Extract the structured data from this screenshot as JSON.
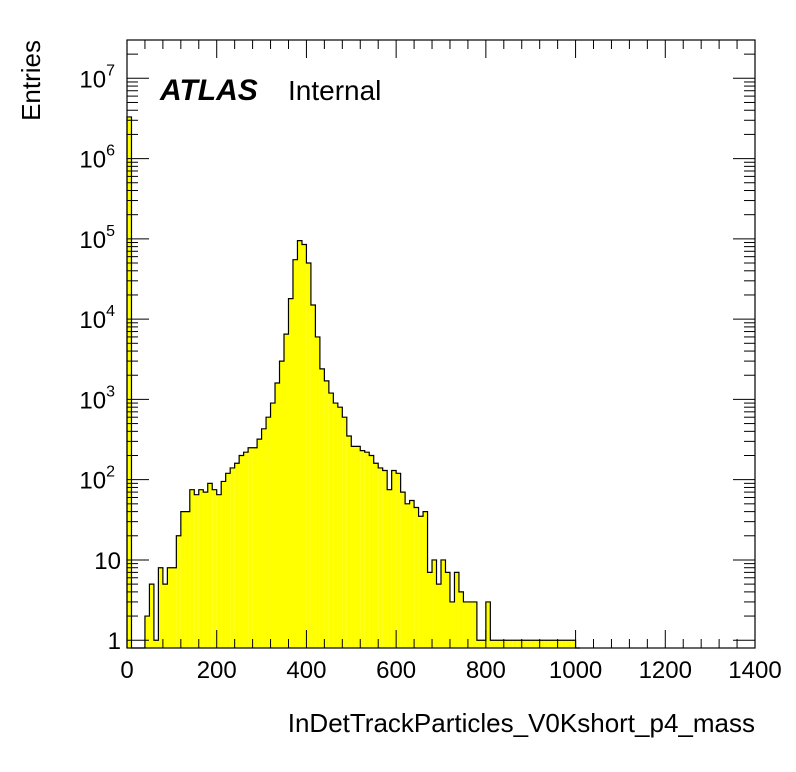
{
  "chart_data": {
    "type": "bar",
    "title": "",
    "xlabel": "InDetTrackParticles_V0Kshort_p4_mass",
    "ylabel": "Entries",
    "xlim": [
      0,
      1400
    ],
    "ylim": [
      0.8,
      30000000
    ],
    "y_scale": "log",
    "grid": false,
    "bar_color": "#ffff00",
    "bin_width": 10,
    "x_ticks": [
      0,
      200,
      400,
      600,
      800,
      1000,
      1200,
      1400
    ],
    "y_ticks": [
      {
        "value": 1,
        "label": "1"
      },
      {
        "value": 10,
        "label": "10"
      },
      {
        "value": 100,
        "label": "10",
        "sup": "2"
      },
      {
        "value": 1000,
        "label": "10",
        "sup": "3"
      },
      {
        "value": 10000,
        "label": "10",
        "sup": "4"
      },
      {
        "value": 100000,
        "label": "10",
        "sup": "5"
      },
      {
        "value": 1000000,
        "label": "10",
        "sup": "6"
      },
      {
        "value": 10000000,
        "label": "10",
        "sup": "7"
      }
    ],
    "bins_x": [
      0,
      10,
      20,
      30,
      40,
      50,
      60,
      70,
      80,
      90,
      100,
      110,
      120,
      130,
      140,
      150,
      160,
      170,
      180,
      190,
      200,
      210,
      220,
      230,
      240,
      250,
      260,
      270,
      280,
      290,
      300,
      310,
      320,
      330,
      340,
      350,
      360,
      370,
      380,
      390,
      400,
      410,
      420,
      430,
      440,
      450,
      460,
      470,
      480,
      490,
      500,
      510,
      520,
      530,
      540,
      550,
      560,
      570,
      580,
      590,
      600,
      610,
      620,
      630,
      640,
      650,
      660,
      670,
      680,
      690,
      700,
      710,
      720,
      730,
      740,
      750,
      760,
      770,
      780,
      790,
      800,
      810,
      820,
      830,
      840,
      850,
      860,
      870,
      880,
      890,
      900,
      910,
      920,
      930,
      940,
      950,
      960,
      970,
      980,
      990,
      1000
    ],
    "values": [
      3300000,
      0,
      0,
      0,
      2,
      5,
      1,
      8,
      5,
      8,
      8,
      20,
      40,
      40,
      75,
      65,
      75,
      70,
      90,
      75,
      65,
      95,
      120,
      140,
      160,
      200,
      220,
      250,
      250,
      320,
      430,
      600,
      900,
      1600,
      3000,
      6500,
      18000,
      55000,
      95000,
      85000,
      50000,
      15000,
      6000,
      2400,
      1700,
      1200,
      900,
      800,
      600,
      350,
      260,
      260,
      230,
      220,
      200,
      160,
      140,
      130,
      75,
      130,
      120,
      70,
      50,
      55,
      45,
      35,
      40,
      7,
      10,
      5,
      10,
      7,
      3,
      7,
      4,
      3,
      3,
      3,
      1,
      1,
      3,
      1,
      1,
      1,
      1,
      1,
      1,
      1,
      1,
      1,
      1,
      1,
      1,
      1,
      1,
      1,
      1,
      1,
      1,
      1,
      0
    ]
  },
  "annotation": {
    "atlas": "ATLAS",
    "label": "Internal"
  }
}
